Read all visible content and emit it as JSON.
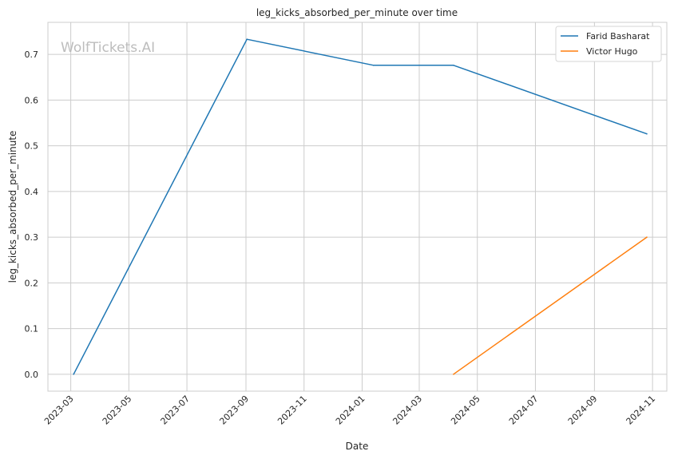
{
  "chart_data": {
    "type": "line",
    "title": "leg_kicks_absorbed_per_minute over time",
    "xlabel": "Date",
    "ylabel": "leg_kicks_absorbed_per_minute",
    "watermark": "WolfTickets.AI",
    "x_ticks": [
      "2023-03",
      "2023-05",
      "2023-07",
      "2023-09",
      "2023-11",
      "2024-01",
      "2024-03",
      "2024-05",
      "2024-07",
      "2024-09",
      "2024-11"
    ],
    "y_ticks": [
      "0.0",
      "0.1",
      "0.2",
      "0.3",
      "0.4",
      "0.5",
      "0.6",
      "0.7"
    ],
    "ylim": [
      -0.037,
      0.77
    ],
    "xlim": [
      "2023-02-05",
      "2024-11-16"
    ],
    "grid": true,
    "legend_position": "top-right",
    "series": [
      {
        "name": "Farid Basharat",
        "color": "#1f77b4",
        "points": [
          {
            "x": "2023-03-04",
            "y": 0.0
          },
          {
            "x": "2023-09-02",
            "y": 0.733
          },
          {
            "x": "2024-01-13",
            "y": 0.676
          },
          {
            "x": "2024-04-06",
            "y": 0.676
          },
          {
            "x": "2024-10-26",
            "y": 0.526
          }
        ]
      },
      {
        "name": "Victor Hugo",
        "color": "#ff7f0e",
        "points": [
          {
            "x": "2024-04-06",
            "y": 0.0
          },
          {
            "x": "2024-10-26",
            "y": 0.3
          }
        ]
      }
    ]
  }
}
